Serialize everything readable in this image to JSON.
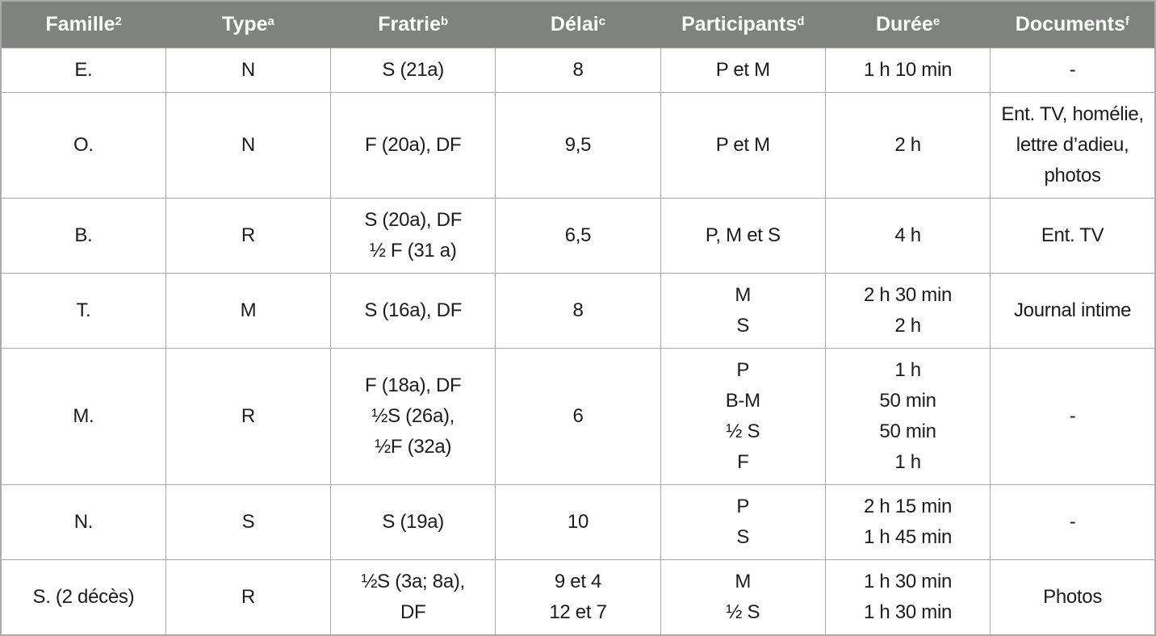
{
  "colors": {
    "header_bg": "#7f827f",
    "border": "#a9a9a9",
    "header_text": "#ffffff",
    "body_text": "#1c1c1c"
  },
  "table": {
    "columns": [
      {
        "label": "Famille",
        "sup": "2"
      },
      {
        "label": "Type",
        "sup": "a"
      },
      {
        "label": "Fratrie",
        "sup": "b"
      },
      {
        "label": "Délai",
        "sup": "c"
      },
      {
        "label": "Participants",
        "sup": "d"
      },
      {
        "label": "Durée",
        "sup": "e"
      },
      {
        "label": "Documents",
        "sup": "f"
      }
    ],
    "rows": [
      {
        "cells": [
          [
            "E."
          ],
          [
            "N"
          ],
          [
            "S (21a)"
          ],
          [
            "8"
          ],
          [
            "P et M"
          ],
          [
            "1 h 10 min"
          ],
          [
            "-"
          ]
        ]
      },
      {
        "cells": [
          [
            "O."
          ],
          [
            "N"
          ],
          [
            "F (20a), DF"
          ],
          [
            "9,5"
          ],
          [
            "P et M"
          ],
          [
            "2 h"
          ],
          [
            "Ent. TV, homélie,",
            "lettre d’adieu,",
            "photos"
          ]
        ]
      },
      {
        "cells": [
          [
            "B."
          ],
          [
            "R"
          ],
          [
            "S (20a), DF",
            "½ F (31 a)"
          ],
          [
            "6,5"
          ],
          [
            "P, M et S"
          ],
          [
            "4 h"
          ],
          [
            "Ent. TV"
          ]
        ]
      },
      {
        "cells": [
          [
            "T."
          ],
          [
            "M"
          ],
          [
            "S (16a), DF"
          ],
          [
            "8"
          ],
          [
            "M",
            "S"
          ],
          [
            "2 h 30 min",
            "2 h"
          ],
          [
            "Journal intime"
          ]
        ]
      },
      {
        "cells": [
          [
            "M."
          ],
          [
            "R"
          ],
          [
            "F (18a), DF",
            "½S (26a),",
            "½F (32a)"
          ],
          [
            "6"
          ],
          [
            "P",
            "B-M",
            "½ S",
            "F"
          ],
          [
            "1 h",
            "50 min",
            "50 min",
            "1 h"
          ],
          [
            "-"
          ]
        ]
      },
      {
        "cells": [
          [
            "N."
          ],
          [
            "S"
          ],
          [
            "S (19a)"
          ],
          [
            "10"
          ],
          [
            "P",
            "S"
          ],
          [
            "2 h 15 min",
            "1 h 45 min"
          ],
          [
            "-"
          ]
        ]
      },
      {
        "cells": [
          [
            "S. (2 décès)"
          ],
          [
            "R"
          ],
          [
            "½S (3a; 8a),",
            "DF"
          ],
          [
            "9 et 4",
            "12 et 7"
          ],
          [
            "M",
            "½ S"
          ],
          [
            "1 h 30 min",
            "1 h 30 min"
          ],
          [
            "Photos"
          ]
        ]
      }
    ]
  }
}
